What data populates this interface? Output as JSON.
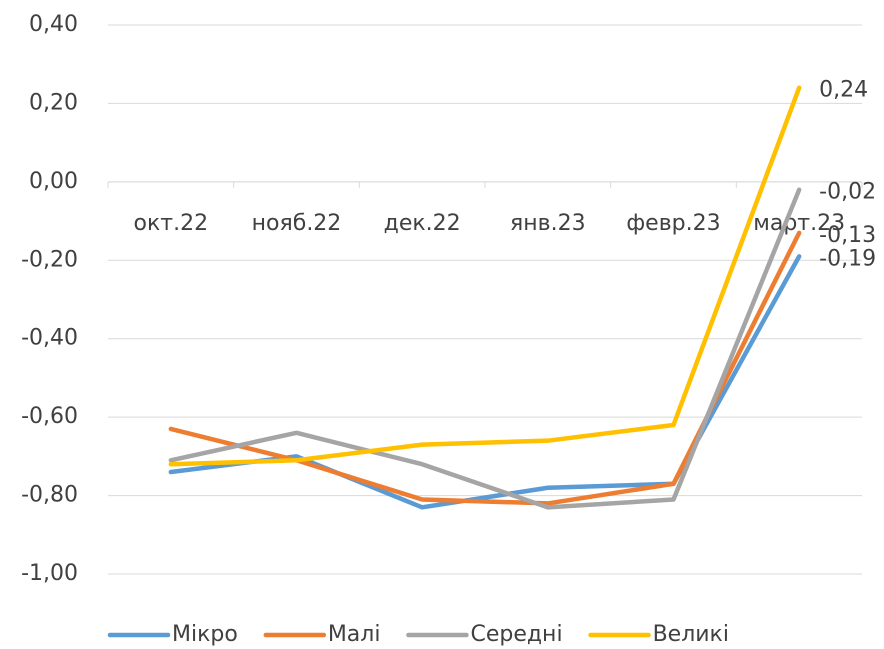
{
  "chart_data": {
    "type": "line",
    "categories": [
      "окт.22",
      "нояб.22",
      "дек.22",
      "янв.23",
      "февр.23",
      "март.23"
    ],
    "series": [
      {
        "name": "Мікро",
        "color": "#5b9bd5",
        "values": [
          -0.74,
          -0.7,
          -0.83,
          -0.78,
          -0.77,
          -0.19
        ],
        "value_labels": [
          null,
          null,
          null,
          null,
          null,
          "-0,19"
        ]
      },
      {
        "name": "Малі",
        "color": "#ed7d31",
        "values": [
          -0.63,
          -0.71,
          -0.81,
          -0.82,
          -0.77,
          -0.13
        ],
        "value_labels": [
          null,
          null,
          null,
          null,
          null,
          "-0,13"
        ]
      },
      {
        "name": "Середні",
        "color": "#a5a5a5",
        "values": [
          -0.71,
          -0.64,
          -0.72,
          -0.83,
          -0.81,
          -0.02
        ],
        "value_labels": [
          null,
          null,
          null,
          null,
          null,
          "-0,02"
        ]
      },
      {
        "name": "Великі",
        "color": "#ffc000",
        "values": [
          -0.72,
          -0.71,
          -0.67,
          -0.66,
          -0.62,
          0.24
        ],
        "value_labels": [
          null,
          null,
          null,
          null,
          null,
          "0,24"
        ]
      }
    ],
    "ylim": [
      -1.0,
      0.4
    ],
    "yticks": [
      {
        "value": 0.4,
        "label": "0,40"
      },
      {
        "value": 0.2,
        "label": "0,20"
      },
      {
        "value": 0,
        "label": "0,00"
      },
      {
        "value": -0.2,
        "label": "-0,20"
      },
      {
        "value": -0.4,
        "label": "-0,40"
      },
      {
        "value": -0.6,
        "label": "-0,60"
      },
      {
        "value": -0.8,
        "label": "-0,80"
      },
      {
        "value": -1.0,
        "label": "-1,00"
      }
    ],
    "grid": true,
    "legend": "bottom"
  }
}
